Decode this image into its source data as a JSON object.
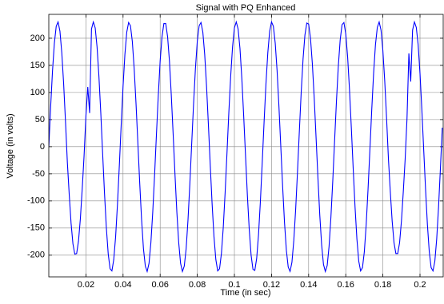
{
  "chart_data": {
    "type": "line",
    "title": "Signal with PQ Enhanced",
    "x_label": "Time (in sec)",
    "y_label": "Voltage (in volts)",
    "color": "#0000ff",
    "grid": true,
    "xlim": [
      0,
      0.2125
    ],
    "ylim": [
      -240,
      244
    ],
    "xticks": [
      0.02,
      0.04,
      0.06,
      0.08,
      0.1,
      0.12,
      0.14,
      0.16,
      0.18,
      0.2
    ],
    "yticks": [
      -200,
      -150,
      -100,
      -50,
      0,
      50,
      100,
      150,
      200
    ],
    "x": [
      0,
      0.001,
      0.002,
      0.003,
      0.004,
      0.005,
      0.006,
      0.007,
      0.008,
      0.009,
      0.01,
      0.011,
      0.012,
      0.013,
      0.014,
      0.015,
      0.016,
      0.017,
      0.018,
      0.019,
      0.02,
      0.021,
      0.022,
      0.023,
      0.024,
      0.025,
      0.026,
      0.027,
      0.028,
      0.029,
      0.03,
      0.031,
      0.032,
      0.033,
      0.034,
      0.035,
      0.036,
      0.037,
      0.038,
      0.039,
      0.04,
      0.041,
      0.042,
      0.043,
      0.044,
      0.045,
      0.046,
      0.047,
      0.048,
      0.049,
      0.05,
      0.051,
      0.052,
      0.053,
      0.054,
      0.055,
      0.056,
      0.057,
      0.058,
      0.059,
      0.06,
      0.061,
      0.062,
      0.063,
      0.064,
      0.065,
      0.066,
      0.067,
      0.068,
      0.069,
      0.07,
      0.071,
      0.072,
      0.073,
      0.074,
      0.075,
      0.076,
      0.077,
      0.078,
      0.079,
      0.08,
      0.081,
      0.082,
      0.083,
      0.084,
      0.085,
      0.086,
      0.087,
      0.088,
      0.089,
      0.09,
      0.091,
      0.092,
      0.093,
      0.094,
      0.095,
      0.096,
      0.097,
      0.098,
      0.099,
      0.1,
      0.101,
      0.102,
      0.103,
      0.104,
      0.105,
      0.106,
      0.107,
      0.108,
      0.109,
      0.11,
      0.111,
      0.112,
      0.113,
      0.114,
      0.115,
      0.116,
      0.117,
      0.118,
      0.119,
      0.12,
      0.121,
      0.122,
      0.123,
      0.124,
      0.125,
      0.126,
      0.127,
      0.128,
      0.129,
      0.13,
      0.131,
      0.132,
      0.133,
      0.134,
      0.135,
      0.136,
      0.137,
      0.138,
      0.139,
      0.14,
      0.141,
      0.142,
      0.143,
      0.144,
      0.145,
      0.146,
      0.147,
      0.148,
      0.149,
      0.15,
      0.151,
      0.152,
      0.153,
      0.154,
      0.155,
      0.156,
      0.157,
      0.158,
      0.159,
      0.16,
      0.161,
      0.162,
      0.163,
      0.164,
      0.165,
      0.166,
      0.167,
      0.168,
      0.169,
      0.17,
      0.171,
      0.172,
      0.173,
      0.174,
      0.175,
      0.176,
      0.177,
      0.178,
      0.179,
      0.18,
      0.181,
      0.182,
      0.183,
      0.184,
      0.185,
      0.186,
      0.187,
      0.188,
      0.189,
      0.19,
      0.191,
      0.192,
      0.193,
      0.194,
      0.195,
      0.196,
      0.197,
      0.198,
      0.199,
      0.2,
      0.201,
      0.202,
      0.203,
      0.204,
      0.205,
      0.206,
      0.207,
      0.208,
      0.209,
      0.21,
      0.211,
      0.212
    ],
    "values": [
      0,
      74,
      140,
      191,
      222,
      230,
      213,
      173,
      116,
      46,
      -29,
      -88,
      -141,
      -179,
      -198,
      -197,
      -174,
      -133,
      -78,
      -17,
      57,
      110,
      62,
      217,
      230,
      219,
      184,
      130,
      63,
      -12,
      -85,
      -149,
      -197,
      -225,
      -229,
      -208,
      -166,
      -106,
      -35,
      40,
      111,
      170,
      211,
      229,
      223,
      194,
      144,
      79,
      6,
      -68,
      -135,
      -188,
      -220,
      -230,
      -215,
      -177,
      -121,
      -52,
      23,
      95,
      158,
      203,
      227,
      227,
      203,
      158,
      95,
      23,
      -52,
      -121,
      -177,
      -215,
      -230,
      -220,
      -188,
      -135,
      -68,
      6,
      79,
      144,
      194,
      223,
      229,
      211,
      170,
      111,
      40,
      -35,
      -106,
      -166,
      -208,
      -229,
      -225,
      -197,
      -149,
      -85,
      -12,
      63,
      130,
      184,
      219,
      230,
      217,
      181,
      126,
      57,
      -17,
      -90,
      -153,
      -200,
      -226,
      -228,
      -206,
      -162,
      -101,
      -29,
      46,
      116,
      173,
      213,
      230,
      222,
      191,
      140,
      74,
      0,
      -74,
      -140,
      -191,
      -222,
      -230,
      -213,
      -173,
      -116,
      -46,
      29,
      101,
      162,
      206,
      228,
      226,
      200,
      153,
      90,
      17,
      -57,
      -126,
      -181,
      -217,
      -230,
      -219,
      -184,
      -130,
      -63,
      12,
      85,
      149,
      197,
      225,
      229,
      208,
      166,
      106,
      35,
      -40,
      -111,
      -170,
      -211,
      -229,
      -223,
      -194,
      -144,
      -79,
      -6,
      68,
      135,
      188,
      220,
      230,
      215,
      177,
      121,
      52,
      -23,
      -83,
      -137,
      -177,
      -197,
      -197,
      -177,
      -137,
      -83,
      -23,
      52,
      172,
      120,
      215,
      230,
      220,
      188,
      135,
      68,
      -6,
      -79,
      -144,
      -194,
      -223,
      -229,
      -211,
      -170,
      -111,
      -40,
      35
    ]
  }
}
